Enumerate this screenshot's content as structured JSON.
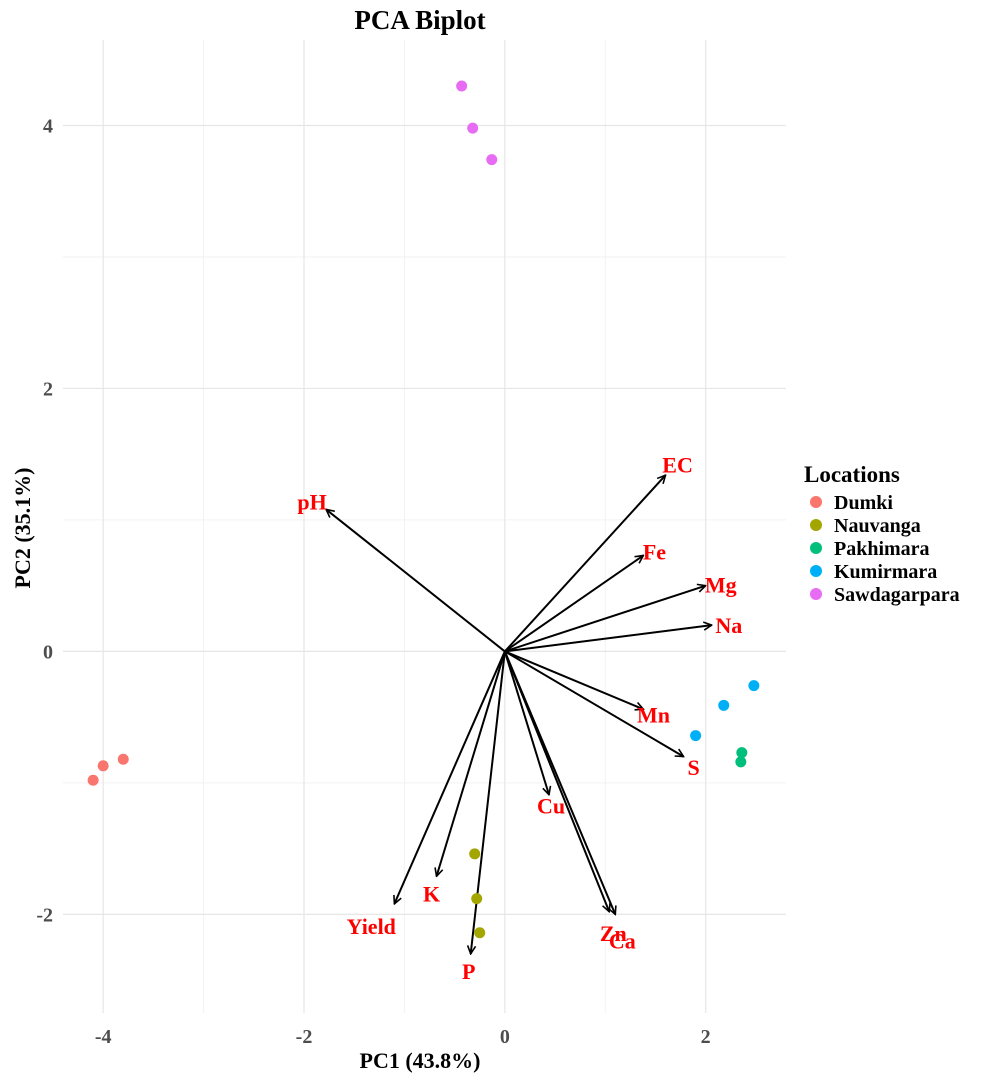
{
  "chart_data": {
    "type": "scatter",
    "title": "PCA Biplot",
    "xlabel": "PC1 (43.8%)",
    "ylabel": "PC2 (35.1%)",
    "xlim": [
      -4.4,
      2.8
    ],
    "ylim": [
      -2.75,
      4.65
    ],
    "x_ticks": [
      {
        "value": -4,
        "label": "-4"
      },
      {
        "value": -2,
        "label": "-2"
      },
      {
        "value": 0,
        "label": "0"
      },
      {
        "value": 2,
        "label": "2"
      }
    ],
    "y_ticks": [
      {
        "value": -2,
        "label": "-2"
      },
      {
        "value": 0,
        "label": "0"
      },
      {
        "value": 2,
        "label": "2"
      },
      {
        "value": 4,
        "label": "4"
      }
    ],
    "x_minor_grid": [
      -3,
      -1,
      1
    ],
    "y_minor_grid": [
      -1,
      1,
      3
    ],
    "grid": true,
    "legend": {
      "title": "Locations",
      "placement": "right",
      "entries": [
        {
          "name": "Dumki",
          "color": "#F8766D"
        },
        {
          "name": "Nauvanga",
          "color": "#A3A500"
        },
        {
          "name": "Pakhimara",
          "color": "#00BF7D"
        },
        {
          "name": "Kumirmara",
          "color": "#00B0F6"
        },
        {
          "name": "Sawdagarpara",
          "color": "#E76BF3"
        }
      ]
    },
    "series": [
      {
        "name": "Dumki",
        "color": "#F8766D",
        "points": [
          {
            "x": -4.1,
            "y": -0.98
          },
          {
            "x": -4.0,
            "y": -0.87
          },
          {
            "x": -3.8,
            "y": -0.82
          }
        ]
      },
      {
        "name": "Nauvanga",
        "color": "#A3A500",
        "points": [
          {
            "x": -0.3,
            "y": -1.54
          },
          {
            "x": -0.28,
            "y": -1.88
          },
          {
            "x": -0.25,
            "y": -2.14
          }
        ]
      },
      {
        "name": "Pakhimara",
        "color": "#00BF7D",
        "points": [
          {
            "x": 2.36,
            "y": -0.77
          },
          {
            "x": 2.35,
            "y": -0.84
          }
        ]
      },
      {
        "name": "Kumirmara",
        "color": "#00B0F6",
        "points": [
          {
            "x": 2.48,
            "y": -0.26
          },
          {
            "x": 2.18,
            "y": -0.41
          },
          {
            "x": 1.9,
            "y": -0.64
          }
        ]
      },
      {
        "name": "Sawdagarpara",
        "color": "#E76BF3",
        "points": [
          {
            "x": -0.43,
            "y": 4.3
          },
          {
            "x": -0.32,
            "y": 3.98
          },
          {
            "x": -0.13,
            "y": 3.74
          }
        ]
      }
    ],
    "loadings": {
      "arrow_color": "#000000",
      "label_color": "#FF0000",
      "vectors": [
        {
          "label": "pH",
          "x": -1.78,
          "y": 1.08,
          "lx": -1.92,
          "ly": 1.14
        },
        {
          "label": "EC",
          "x": 1.6,
          "y": 1.34,
          "lx": 1.72,
          "ly": 1.42
        },
        {
          "label": "Fe",
          "x": 1.38,
          "y": 0.73,
          "lx": 1.49,
          "ly": 0.76
        },
        {
          "label": "Mg",
          "x": 2.0,
          "y": 0.5,
          "lx": 2.15,
          "ly": 0.51
        },
        {
          "label": "Na",
          "x": 2.06,
          "y": 0.2,
          "lx": 2.23,
          "ly": 0.2
        },
        {
          "label": "Mn",
          "x": 1.38,
          "y": -0.44,
          "lx": 1.48,
          "ly": -0.48
        },
        {
          "label": "S",
          "x": 1.78,
          "y": -0.8,
          "lx": 1.88,
          "ly": -0.88
        },
        {
          "label": "Cu",
          "x": 0.44,
          "y": -1.09,
          "lx": 0.46,
          "ly": -1.17
        },
        {
          "label": "Zn",
          "x": 1.04,
          "y": -1.98,
          "lx": 1.08,
          "ly": -2.14
        },
        {
          "label": "Ca",
          "x": 1.1,
          "y": -2.0,
          "lx": 1.17,
          "ly": -2.2
        },
        {
          "label": "K",
          "x": -0.68,
          "y": -1.71,
          "lx": -0.73,
          "ly": -1.84
        },
        {
          "label": "Yield",
          "x": -1.1,
          "y": -1.92,
          "lx": -1.33,
          "ly": -2.09
        },
        {
          "label": "P",
          "x": -0.34,
          "y": -2.3,
          "lx": -0.36,
          "ly": -2.43
        }
      ]
    }
  }
}
